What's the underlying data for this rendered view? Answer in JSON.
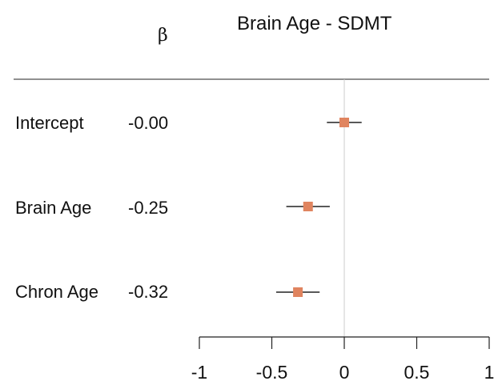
{
  "chart_data": {
    "type": "forest",
    "title": "Brain Age - SDMT",
    "column_header": "β",
    "rows": [
      {
        "label": "Intercept",
        "beta_text": "-0.00",
        "estimate": 0.0,
        "ci_low": -0.12,
        "ci_high": 0.12
      },
      {
        "label": "Brain Age",
        "beta_text": "-0.25",
        "estimate": -0.25,
        "ci_low": -0.4,
        "ci_high": -0.1
      },
      {
        "label": "Chron Age",
        "beta_text": "-0.32",
        "estimate": -0.32,
        "ci_low": -0.47,
        "ci_high": -0.17
      }
    ],
    "x_ticks": [
      -1,
      -0.5,
      0,
      0.5,
      1
    ],
    "x_tick_labels": [
      "-1",
      "-0.5",
      "0",
      "0.5",
      "1"
    ],
    "xlim": [
      -1,
      1
    ],
    "reference_line": 0,
    "marker_color": "#e0845f",
    "ci_color": "#222222",
    "reference_line_color": "#cccccc"
  }
}
